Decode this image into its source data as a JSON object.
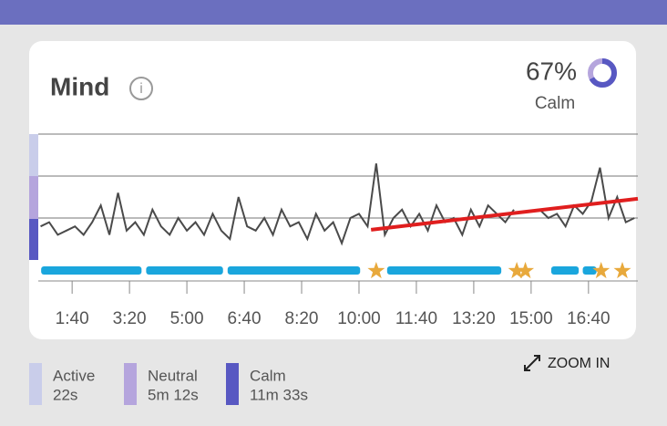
{
  "header": {
    "title": "Mind"
  },
  "score": {
    "value": 67,
    "label": "67%",
    "caption": "Calm"
  },
  "chart_data": {
    "type": "line",
    "xlim": [
      41,
      1086
    ],
    "ylim": [
      0,
      3
    ],
    "yticks": [
      1,
      2,
      3
    ],
    "xticks": [
      {
        "value": 100,
        "label": "1:40"
      },
      {
        "value": 200,
        "label": "3:20"
      },
      {
        "value": 300,
        "label": "5:00"
      },
      {
        "value": 400,
        "label": "6:40"
      },
      {
        "value": 500,
        "label": "8:20"
      },
      {
        "value": 600,
        "label": "10:00"
      },
      {
        "value": 700,
        "label": "11:40"
      },
      {
        "value": 800,
        "label": "13:20"
      },
      {
        "value": 900,
        "label": "15:00"
      },
      {
        "value": 1000,
        "label": "16:40"
      }
    ],
    "x": [
      45,
      60,
      75,
      90,
      105,
      120,
      135,
      150,
      165,
      180,
      195,
      210,
      225,
      240,
      255,
      270,
      285,
      300,
      315,
      330,
      345,
      360,
      375,
      390,
      405,
      420,
      435,
      450,
      465,
      480,
      495,
      510,
      525,
      540,
      555,
      570,
      585,
      600,
      615,
      630,
      645,
      660,
      675,
      690,
      705,
      720,
      735,
      750,
      765,
      780,
      795,
      810,
      825,
      840,
      855,
      870,
      885,
      900,
      915,
      930,
      945,
      960,
      975,
      990,
      1005,
      1020,
      1035,
      1050,
      1065,
      1080
    ],
    "series": [
      {
        "color": "#4a4a4a",
        "values": [
          0.8,
          0.9,
          0.6,
          0.7,
          0.8,
          0.6,
          0.9,
          1.3,
          0.6,
          1.6,
          0.7,
          0.9,
          0.6,
          1.2,
          0.8,
          0.6,
          1.0,
          0.7,
          0.9,
          0.6,
          1.1,
          0.7,
          0.5,
          1.5,
          0.8,
          0.7,
          1.0,
          0.6,
          1.2,
          0.8,
          0.9,
          0.5,
          1.1,
          0.7,
          0.9,
          0.4,
          1.0,
          1.1,
          0.8,
          2.3,
          0.6,
          1.0,
          1.2,
          0.8,
          1.1,
          0.7,
          1.3,
          0.9,
          1.0,
          0.6,
          1.2,
          0.8,
          1.3,
          1.1,
          0.9,
          1.2,
          null,
          null,
          1.2,
          1.0,
          1.1,
          0.8,
          1.3,
          1.1,
          1.4,
          2.2,
          1.0,
          1.5,
          0.9,
          1.0
        ]
      }
    ],
    "trend": {
      "color": "#e01e1e",
      "x": [
        621,
        1086
      ],
      "values": [
        0.72,
        1.46
      ]
    },
    "birds": {
      "color": "#1aa6dd",
      "ranges": [
        [
          46,
          221
        ],
        [
          229,
          363
        ],
        [
          371,
          602
        ],
        [
          649,
          848
        ],
        [
          935,
          983
        ],
        [
          990,
          1014
        ]
      ]
    },
    "stars": {
      "color": "#e8a93c",
      "x": [
        630,
        875,
        890,
        1022,
        1059
      ]
    }
  },
  "zoom": "ZOOM IN",
  "legend": [
    {
      "name": "Active",
      "duration": "22s",
      "color": "#c9cdea"
    },
    {
      "name": "Neutral",
      "duration": "5m 12s",
      "color": "#b5a5dd"
    },
    {
      "name": "Calm",
      "duration": "11m 33s",
      "color": "#5858c2"
    }
  ]
}
